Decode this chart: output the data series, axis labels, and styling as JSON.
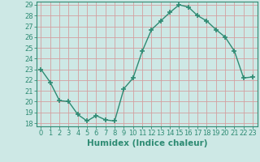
{
  "x": [
    0,
    1,
    2,
    3,
    4,
    5,
    6,
    7,
    8,
    9,
    10,
    11,
    12,
    13,
    14,
    15,
    16,
    17,
    18,
    19,
    20,
    21,
    22,
    23
  ],
  "y": [
    23.0,
    21.8,
    20.1,
    20.0,
    18.8,
    18.2,
    18.7,
    18.3,
    18.2,
    21.2,
    22.2,
    24.7,
    26.7,
    27.5,
    28.3,
    29.0,
    28.8,
    28.0,
    27.5,
    26.7,
    26.0,
    24.7,
    22.2,
    22.3
  ],
  "line_color": "#2e8b73",
  "marker": "+",
  "marker_size": 4,
  "marker_lw": 1.2,
  "bg_color": "#cde8e5",
  "grid_color": "#d4a0a0",
  "line_width": 1.0,
  "xlabel": "Humidex (Indice chaleur)",
  "ylim_min": 18,
  "ylim_max": 29,
  "xlim_min": 0,
  "xlim_max": 23,
  "yticks": [
    18,
    19,
    20,
    21,
    22,
    23,
    24,
    25,
    26,
    27,
    28,
    29
  ],
  "xticks": [
    0,
    1,
    2,
    3,
    4,
    5,
    6,
    7,
    8,
    9,
    10,
    11,
    12,
    13,
    14,
    15,
    16,
    17,
    18,
    19,
    20,
    21,
    22,
    23
  ],
  "tick_label_fontsize": 6.0,
  "xlabel_fontsize": 7.5,
  "tick_color": "#2e8b73",
  "spine_color": "#2e8b73"
}
